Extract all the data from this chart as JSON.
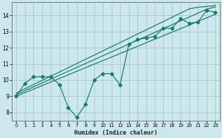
{
  "xlabel": "Humidex (Indice chaleur)",
  "background_color": "#cce8ec",
  "grid_color": "#aacccc",
  "line_color": "#1a7a6e",
  "xlim": [
    -0.5,
    23.5
  ],
  "ylim": [
    7.5,
    14.8
  ],
  "xticks": [
    0,
    1,
    2,
    3,
    4,
    5,
    6,
    7,
    8,
    9,
    10,
    11,
    12,
    13,
    14,
    15,
    16,
    17,
    18,
    19,
    20,
    21,
    22,
    23
  ],
  "yticks": [
    8,
    9,
    10,
    11,
    12,
    13,
    14
  ],
  "zigzag": [
    9.0,
    9.8,
    10.2,
    10.2,
    10.2,
    9.7,
    8.3,
    7.7,
    8.5,
    10.0,
    10.4,
    10.4,
    9.7,
    12.2,
    12.5,
    12.6,
    12.7,
    13.2,
    13.2,
    13.8,
    13.5,
    13.6,
    14.3,
    14.2
  ],
  "straight1": [
    9.0,
    9.22,
    9.44,
    9.66,
    9.88,
    10.1,
    10.32,
    10.54,
    10.76,
    10.98,
    11.2,
    11.42,
    11.64,
    11.86,
    12.08,
    12.3,
    12.52,
    12.74,
    12.96,
    13.18,
    13.4,
    13.62,
    13.84,
    14.06
  ],
  "straight2": [
    9.1,
    9.34,
    9.58,
    9.82,
    10.06,
    10.3,
    10.54,
    10.78,
    11.02,
    11.26,
    11.5,
    11.74,
    11.98,
    12.22,
    12.46,
    12.7,
    12.94,
    13.18,
    13.42,
    13.66,
    13.9,
    14.14,
    14.38,
    14.52
  ],
  "straight3": [
    9.2,
    9.46,
    9.72,
    9.98,
    10.24,
    10.5,
    10.76,
    11.02,
    11.28,
    11.54,
    11.8,
    12.06,
    12.32,
    12.58,
    12.84,
    13.1,
    13.36,
    13.62,
    13.88,
    14.14,
    14.4,
    14.5,
    14.55,
    14.6
  ]
}
